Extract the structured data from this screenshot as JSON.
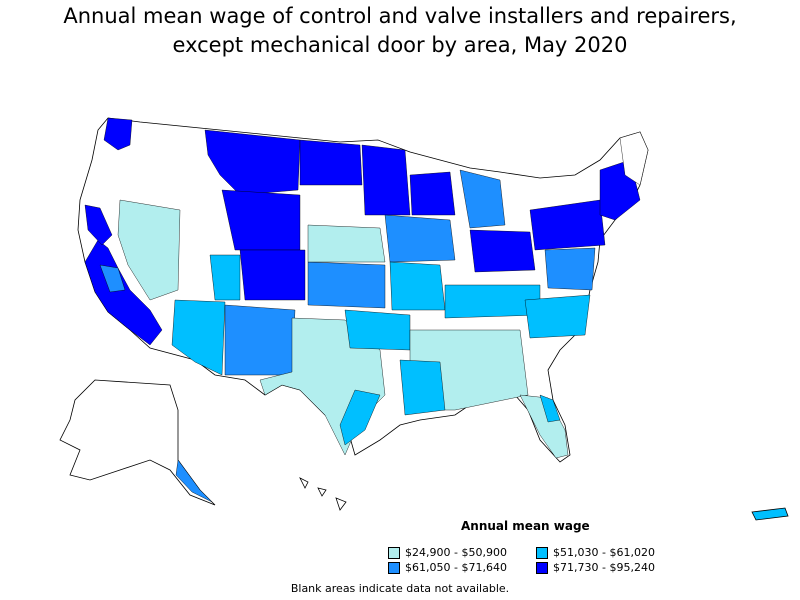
{
  "title": {
    "line1": "Annual mean wage of control and valve installers and repairers,",
    "line2": "except mechanical door by area, May 2020"
  },
  "legend": {
    "title": "Annual mean wage",
    "items": [
      {
        "label": "$24,900 - $50,900",
        "color": "#b2eeee"
      },
      {
        "label": "$51,030 - $61,020",
        "color": "#00bfff"
      },
      {
        "label": "$61,050 - $71,640",
        "color": "#1e8fff"
      },
      {
        "label": "$71,730 - $95,240",
        "color": "#0000ff"
      }
    ]
  },
  "note": "Blank areas indicate data not available.",
  "colors": {
    "blank": "#ffffff",
    "border": "#000000"
  }
}
